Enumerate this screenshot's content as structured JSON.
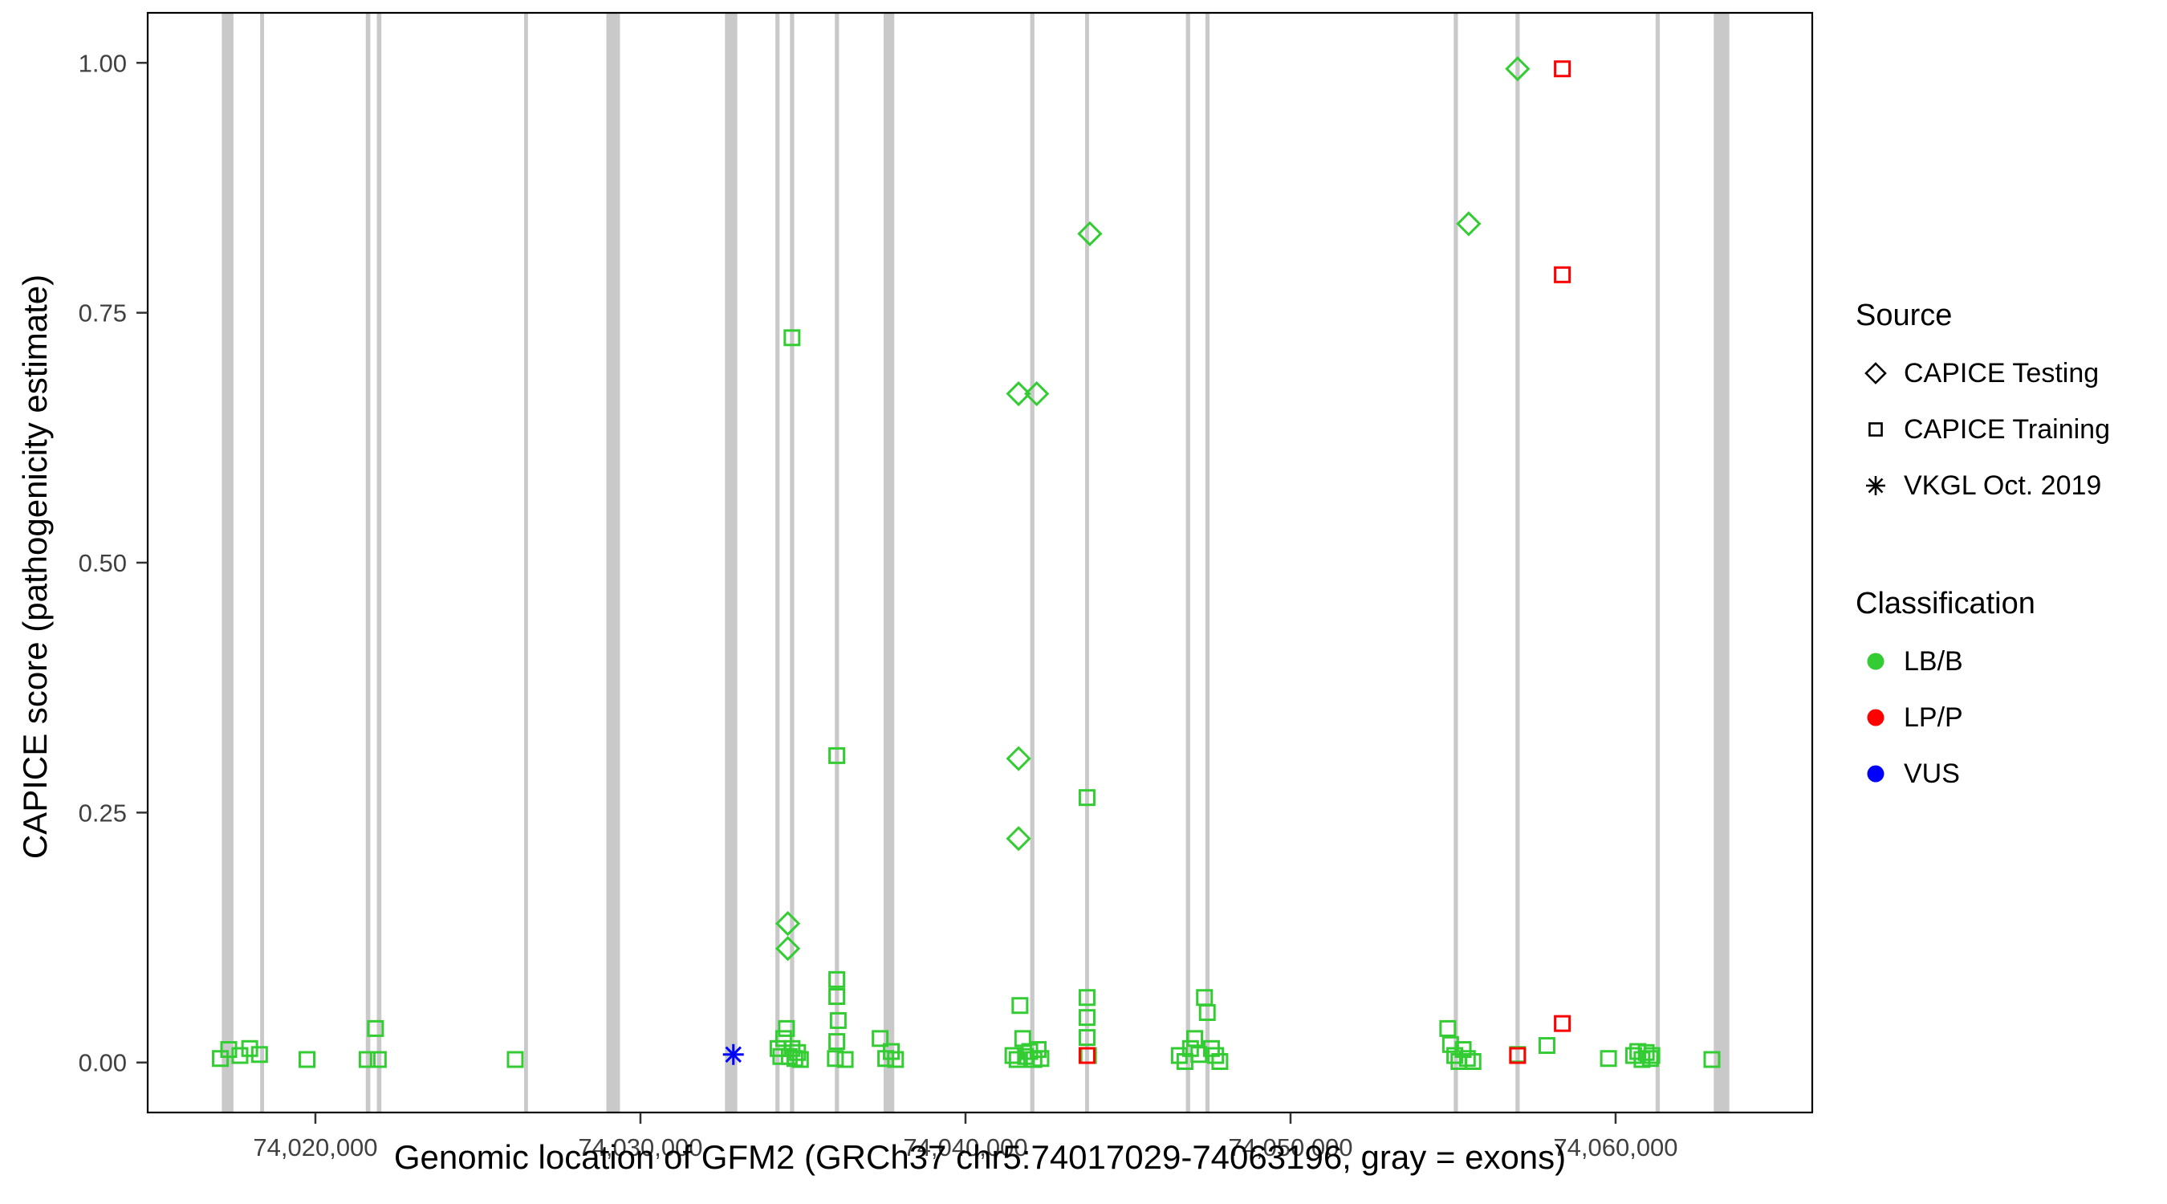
{
  "figure": {
    "xlabel": "Genomic location of GFM2 (GRCh37 chr5:74017029-74063196, gray = exons)",
    "ylabel": "CAPICE score (pathogenicity estimate)"
  },
  "legend": {
    "source": {
      "title": "Source",
      "items": [
        {
          "label": "CAPICE Testing",
          "shape": "diamond"
        },
        {
          "label": "CAPICE Training",
          "shape": "square"
        },
        {
          "label": "VKGL Oct. 2019",
          "shape": "asterisk"
        }
      ]
    },
    "classification": {
      "title": "Classification",
      "items": [
        {
          "label": "LB/B",
          "color": "#33CC33"
        },
        {
          "label": "LP/P",
          "color": "#FF0000"
        },
        {
          "label": "VUS",
          "color": "#0000FF"
        }
      ]
    }
  },
  "chart_data": {
    "type": "scatter",
    "title": "",
    "xlabel": "Genomic location of GFM2 (GRCh37 chr5:74017029-74063196, gray = exons)",
    "ylabel": "CAPICE score (pathogenicity estimate)",
    "xlim": [
      74014840,
      74066050
    ],
    "ylim": [
      -0.05,
      1.05
    ],
    "grid": false,
    "legend_position": "right",
    "x_ticks": [
      {
        "value": 74020000,
        "label": "74,020,000"
      },
      {
        "value": 74030000,
        "label": "74,030,000"
      },
      {
        "value": 74040000,
        "label": "74,040,000"
      },
      {
        "value": 74050000,
        "label": "74,050,000"
      },
      {
        "value": 74060000,
        "label": "74,060,000"
      }
    ],
    "y_ticks": [
      {
        "value": 0.0,
        "label": "0.00"
      },
      {
        "value": 0.25,
        "label": "0.25"
      },
      {
        "value": 0.5,
        "label": "0.50"
      },
      {
        "value": 0.75,
        "label": "0.75"
      },
      {
        "value": 1.0,
        "label": "1.00"
      }
    ],
    "colors": {
      "exon": "#C9C9C9",
      "axis": "#333333"
    },
    "source_codes": {
      "T": "CAPICE Testing",
      "R": "CAPICE Training",
      "V": "VKGL Oct. 2019"
    },
    "shape_by_source": {
      "T": "diamond",
      "R": "square",
      "V": "asterisk"
    },
    "color_by_class": {
      "LB/B": "#33CC33",
      "LP/P": "#FF0000",
      "VUS": "#0000FF"
    },
    "exons": [
      [
        74017120,
        74017480
      ],
      [
        74018300,
        74018420
      ],
      [
        74021550,
        74021690
      ],
      [
        74021890,
        74022030
      ],
      [
        74026420,
        74026540
      ],
      [
        74028950,
        74029370
      ],
      [
        74032600,
        74032980
      ],
      [
        74034150,
        74034280
      ],
      [
        74034600,
        74034730
      ],
      [
        74035980,
        74036110
      ],
      [
        74037480,
        74037810
      ],
      [
        74041990,
        74042120
      ],
      [
        74043680,
        74043800
      ],
      [
        74046780,
        74046910
      ],
      [
        74047380,
        74047510
      ],
      [
        74055020,
        74055150
      ],
      [
        74056920,
        74057050
      ],
      [
        74061230,
        74061360
      ],
      [
        74063020,
        74063500
      ]
    ],
    "points": [
      [
        74017076,
        0.004,
        "R",
        "LB/B"
      ],
      [
        74017334,
        0.013,
        "R",
        "LB/B"
      ],
      [
        74017678,
        0.007,
        "R",
        "LB/B"
      ],
      [
        74017979,
        0.014,
        "R",
        "LB/B"
      ],
      [
        74018280,
        0.008,
        "R",
        "LB/B"
      ],
      [
        74019742,
        0.003,
        "R",
        "LB/B"
      ],
      [
        74021591,
        0.003,
        "R",
        "LB/B"
      ],
      [
        74021849,
        0.034,
        "R",
        "LB/B"
      ],
      [
        74021935,
        0.003,
        "R",
        "LB/B"
      ],
      [
        74026148,
        0.003,
        "R",
        "LB/B"
      ],
      [
        74034233,
        0.014,
        "R",
        "LB/B"
      ],
      [
        74034319,
        0.006,
        "R",
        "LB/B"
      ],
      [
        74034405,
        0.024,
        "R",
        "LB/B"
      ],
      [
        74034491,
        0.034,
        "R",
        "LB/B"
      ],
      [
        74034577,
        0.006,
        "R",
        "LB/B"
      ],
      [
        74034663,
        0.725,
        "R",
        "LB/B"
      ],
      [
        74034663,
        0.014,
        "R",
        "LB/B"
      ],
      [
        74034749,
        0.004,
        "R",
        "LB/B"
      ],
      [
        74034835,
        0.01,
        "R",
        "LB/B"
      ],
      [
        74034921,
        0.003,
        "R",
        "LB/B"
      ],
      [
        74035997,
        0.004,
        "R",
        "LB/B"
      ],
      [
        74036040,
        0.307,
        "R",
        "LB/B"
      ],
      [
        74036040,
        0.083,
        "R",
        "LB/B"
      ],
      [
        74036040,
        0.066,
        "R",
        "LB/B"
      ],
      [
        74036040,
        0.021,
        "R",
        "LB/B"
      ],
      [
        74036083,
        0.042,
        "R",
        "LB/B"
      ],
      [
        74036298,
        0.003,
        "R",
        "LB/B"
      ],
      [
        74037374,
        0.024,
        "R",
        "LB/B"
      ],
      [
        74037546,
        0.004,
        "R",
        "LB/B"
      ],
      [
        74037718,
        0.011,
        "R",
        "LB/B"
      ],
      [
        74037847,
        0.003,
        "R",
        "LB/B"
      ],
      [
        74041460,
        0.007,
        "R",
        "LB/B"
      ],
      [
        74041589,
        0.003,
        "R",
        "LB/B"
      ],
      [
        74041675,
        0.057,
        "R",
        "LB/B"
      ],
      [
        74041761,
        0.024,
        "R",
        "LB/B"
      ],
      [
        74041847,
        0.006,
        "R",
        "LB/B"
      ],
      [
        74041976,
        0.011,
        "R",
        "LB/B"
      ],
      [
        74042105,
        0.003,
        "R",
        "LB/B"
      ],
      [
        74042234,
        0.013,
        "R",
        "LB/B"
      ],
      [
        74042320,
        0.004,
        "R",
        "LB/B"
      ],
      [
        74043739,
        0.265,
        "R",
        "LB/B"
      ],
      [
        74043739,
        0.065,
        "R",
        "LB/B"
      ],
      [
        74043739,
        0.045,
        "R",
        "LB/B"
      ],
      [
        74043739,
        0.025,
        "R",
        "LB/B"
      ],
      [
        74043782,
        0.007,
        "R",
        "LB/B"
      ],
      [
        74046578,
        0.007,
        "R",
        "LB/B"
      ],
      [
        74046750,
        0.001,
        "R",
        "LB/B"
      ],
      [
        74046922,
        0.014,
        "R",
        "LB/B"
      ],
      [
        74047051,
        0.024,
        "R",
        "LB/B"
      ],
      [
        74047180,
        0.008,
        "R",
        "LB/B"
      ],
      [
        74047352,
        0.065,
        "R",
        "LB/B"
      ],
      [
        74047438,
        0.05,
        "R",
        "LB/B"
      ],
      [
        74047567,
        0.014,
        "R",
        "LB/B"
      ],
      [
        74047696,
        0.007,
        "R",
        "LB/B"
      ],
      [
        74047825,
        0.001,
        "R",
        "LB/B"
      ],
      [
        74054837,
        0.034,
        "R",
        "LB/B"
      ],
      [
        74054923,
        0.018,
        "R",
        "LB/B"
      ],
      [
        74055052,
        0.007,
        "R",
        "LB/B"
      ],
      [
        74055181,
        0.001,
        "R",
        "LB/B"
      ],
      [
        74055310,
        0.013,
        "R",
        "LB/B"
      ],
      [
        74055439,
        0.004,
        "R",
        "LB/B"
      ],
      [
        74055611,
        0.001,
        "R",
        "LB/B"
      ],
      [
        74056985,
        0.008,
        "R",
        "LB/B"
      ],
      [
        74057888,
        0.017,
        "R",
        "LB/B"
      ],
      [
        74059781,
        0.004,
        "R",
        "LB/B"
      ],
      [
        74060555,
        0.007,
        "R",
        "LB/B"
      ],
      [
        74060684,
        0.011,
        "R",
        "LB/B"
      ],
      [
        74060813,
        0.003,
        "R",
        "LB/B"
      ],
      [
        74060942,
        0.01,
        "R",
        "LB/B"
      ],
      [
        74061071,
        0.004,
        "R",
        "LB/B"
      ],
      [
        74061114,
        0.007,
        "R",
        "LB/B"
      ],
      [
        74062963,
        0.003,
        "R",
        "LB/B"
      ],
      [
        74034534,
        0.139,
        "T",
        "LB/B"
      ],
      [
        74034534,
        0.114,
        "T",
        "LB/B"
      ],
      [
        74041632,
        0.669,
        "T",
        "LB/B"
      ],
      [
        74042191,
        0.669,
        "T",
        "LB/B"
      ],
      [
        74041632,
        0.304,
        "T",
        "LB/B"
      ],
      [
        74041632,
        0.224,
        "T",
        "LB/B"
      ],
      [
        74043825,
        0.829,
        "T",
        "LB/B"
      ],
      [
        74055480,
        0.839,
        "T",
        "LB/B"
      ],
      [
        74056985,
        0.994,
        "T",
        "LB/B"
      ],
      [
        74043739,
        0.007,
        "R",
        "LP/P"
      ],
      [
        74056985,
        0.007,
        "R",
        "LP/P"
      ],
      [
        74058361,
        0.994,
        "R",
        "LP/P"
      ],
      [
        74058361,
        0.788,
        "R",
        "LP/P"
      ],
      [
        74058361,
        0.039,
        "R",
        "LP/P"
      ],
      [
        74032858,
        0.008,
        "V",
        "VUS"
      ]
    ]
  }
}
